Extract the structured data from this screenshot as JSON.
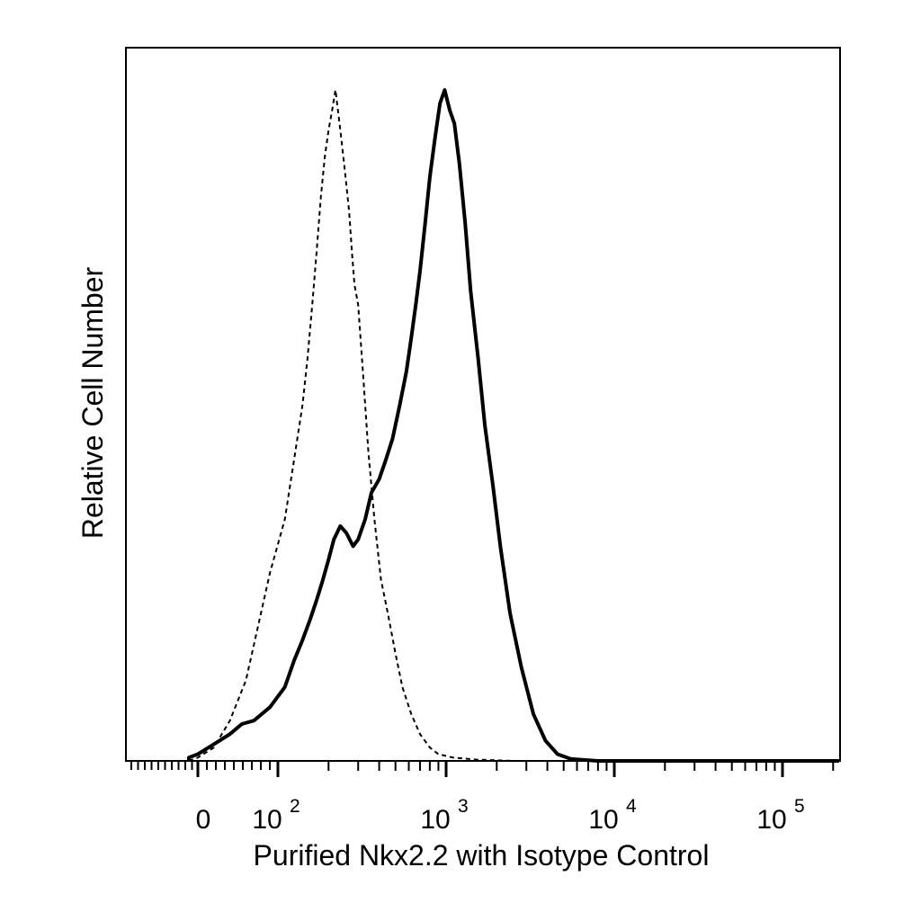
{
  "chart_data": {
    "type": "line",
    "title": "",
    "xlabel": "Purified Nkx2.2 with Isotype Control",
    "ylabel": "Relative Cell Number",
    "x_scale": "biexponential (0 then log)",
    "xlim": [
      -60,
      250000
    ],
    "ylim": [
      0,
      100
    ],
    "grid": false,
    "legend": "none",
    "x_ticks": [
      {
        "value": 0,
        "base": "0",
        "exp": ""
      },
      {
        "value": 100,
        "base": "10",
        "exp": "2"
      },
      {
        "value": 1000,
        "base": "10",
        "exp": "3"
      },
      {
        "value": 10000,
        "base": "10",
        "exp": "4"
      },
      {
        "value": 100000,
        "base": "10",
        "exp": "5"
      }
    ],
    "series": [
      {
        "style": "dashed",
        "color": "#000000",
        "points": [
          [
            -20,
            0
          ],
          [
            0,
            0.5
          ],
          [
            20,
            2
          ],
          [
            40,
            6
          ],
          [
            60,
            12
          ],
          [
            75,
            20
          ],
          [
            90,
            28
          ],
          [
            110,
            36
          ],
          [
            125,
            45
          ],
          [
            140,
            53
          ],
          [
            150,
            60
          ],
          [
            160,
            68
          ],
          [
            170,
            76
          ],
          [
            180,
            84
          ],
          [
            190,
            90
          ],
          [
            200,
            94
          ],
          [
            210,
            97
          ],
          [
            220,
            100
          ],
          [
            235,
            94
          ],
          [
            250,
            88
          ],
          [
            265,
            82
          ],
          [
            275,
            76
          ],
          [
            285,
            71
          ],
          [
            300,
            68
          ],
          [
            320,
            58
          ],
          [
            345,
            46
          ],
          [
            375,
            36
          ],
          [
            410,
            27
          ],
          [
            450,
            22
          ],
          [
            500,
            16
          ],
          [
            550,
            11
          ],
          [
            620,
            7
          ],
          [
            700,
            4
          ],
          [
            800,
            2
          ],
          [
            900,
            1
          ],
          [
            1100,
            0.5
          ],
          [
            1500,
            0.2
          ],
          [
            2500,
            0
          ]
        ]
      },
      {
        "style": "solid",
        "color": "#000000",
        "points": [
          [
            -40,
            0
          ],
          [
            -20,
            0.5
          ],
          [
            0,
            1
          ],
          [
            20,
            2.5
          ],
          [
            40,
            4
          ],
          [
            55,
            5.5
          ],
          [
            70,
            6
          ],
          [
            90,
            8
          ],
          [
            110,
            11
          ],
          [
            125,
            15
          ],
          [
            140,
            18
          ],
          [
            155,
            21
          ],
          [
            170,
            24
          ],
          [
            185,
            27
          ],
          [
            200,
            30
          ],
          [
            215,
            33
          ],
          [
            235,
            35
          ],
          [
            255,
            34
          ],
          [
            280,
            32
          ],
          [
            300,
            33
          ],
          [
            330,
            36
          ],
          [
            360,
            40
          ],
          [
            400,
            42
          ],
          [
            440,
            45
          ],
          [
            480,
            48
          ],
          [
            530,
            53
          ],
          [
            580,
            58
          ],
          [
            620,
            63
          ],
          [
            660,
            68
          ],
          [
            700,
            73
          ],
          [
            750,
            80
          ],
          [
            800,
            87
          ],
          [
            860,
            93
          ],
          [
            920,
            98
          ],
          [
            980,
            100
          ],
          [
            1050,
            97
          ],
          [
            1120,
            95
          ],
          [
            1200,
            89
          ],
          [
            1300,
            80
          ],
          [
            1400,
            70
          ],
          [
            1550,
            60
          ],
          [
            1700,
            50
          ],
          [
            1900,
            41
          ],
          [
            2100,
            32
          ],
          [
            2400,
            22
          ],
          [
            2800,
            14
          ],
          [
            3300,
            7
          ],
          [
            3900,
            3
          ],
          [
            4600,
            1
          ],
          [
            5500,
            0.3
          ],
          [
            8000,
            0
          ],
          [
            250000,
            0
          ]
        ]
      }
    ]
  }
}
